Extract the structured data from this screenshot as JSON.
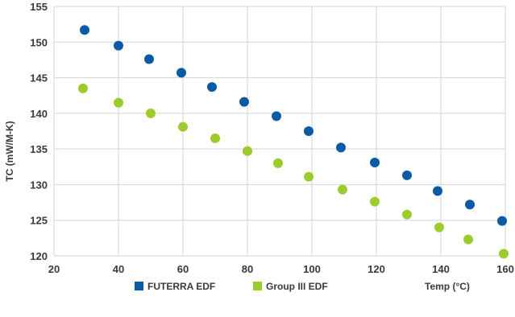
{
  "chart_data": {
    "type": "scatter",
    "title": "",
    "xlabel": "Temp (°C)",
    "ylabel": "TC (mW/M-K)",
    "xlim": [
      20,
      160
    ],
    "ylim": [
      120,
      155
    ],
    "x_ticks": [
      20,
      40,
      60,
      80,
      100,
      120,
      140,
      160
    ],
    "y_ticks": [
      120,
      125,
      130,
      135,
      140,
      145,
      150,
      155
    ],
    "grid": true,
    "legend_position": "bottom",
    "series": [
      {
        "name": "FUTERRA EDF",
        "color": "#0a5aa6",
        "points": [
          [
            29.5,
            151.7
          ],
          [
            40,
            149.5
          ],
          [
            49.5,
            147.6
          ],
          [
            59.5,
            145.7
          ],
          [
            69,
            143.7
          ],
          [
            79,
            141.6
          ],
          [
            89,
            139.6
          ],
          [
            99,
            137.5
          ],
          [
            109,
            135.2
          ],
          [
            119.5,
            133.1
          ],
          [
            129.5,
            131.3
          ],
          [
            139,
            129.1
          ],
          [
            149,
            127.2
          ],
          [
            159,
            124.9
          ]
        ]
      },
      {
        "name": "Group III EDF",
        "color": "#9bcb2c",
        "points": [
          [
            29,
            143.5
          ],
          [
            40,
            141.5
          ],
          [
            50,
            140.0
          ],
          [
            60,
            138.1
          ],
          [
            70,
            136.5
          ],
          [
            80,
            134.7
          ],
          [
            89.5,
            133.0
          ],
          [
            99,
            131.1
          ],
          [
            109.5,
            129.3
          ],
          [
            119.5,
            127.6
          ],
          [
            129.5,
            125.8
          ],
          [
            139.5,
            124.0
          ],
          [
            148.5,
            122.3
          ],
          [
            159.5,
            120.3
          ]
        ]
      }
    ]
  }
}
